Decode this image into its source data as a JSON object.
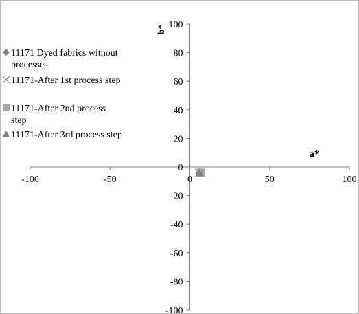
{
  "chart_data": {
    "type": "scatter",
    "xlabel": "a*",
    "ylabel": "b*",
    "xlim": [
      -100,
      100
    ],
    "ylim": [
      -100,
      100
    ],
    "x_ticks": [
      "-100",
      "-50",
      "0",
      "50",
      "100"
    ],
    "y_ticks": [
      "100",
      "80",
      "60",
      "40",
      "20",
      "0",
      "-20",
      "-40",
      "-60",
      "-80",
      "-100"
    ],
    "grid": false,
    "legend_position": "left",
    "series": [
      {
        "name": "11171 Dyed fabrics without processes",
        "marker": "diamond",
        "color": "#808080",
        "points": [
          {
            "x": 6,
            "y": -4
          }
        ]
      },
      {
        "name": "11171-After 1st process step",
        "marker": "cross",
        "color": "#808080",
        "points": [
          {
            "x": 6,
            "y": -4
          }
        ]
      },
      {
        "name": "11171-After 2nd process step",
        "marker": "square",
        "color": "#a6a6a6",
        "points": [
          {
            "x": 7,
            "y": -4
          }
        ]
      },
      {
        "name": "11171-After 3rd process step",
        "marker": "triangle",
        "color": "#808080",
        "points": [
          {
            "x": 6,
            "y": -4
          }
        ]
      }
    ]
  }
}
